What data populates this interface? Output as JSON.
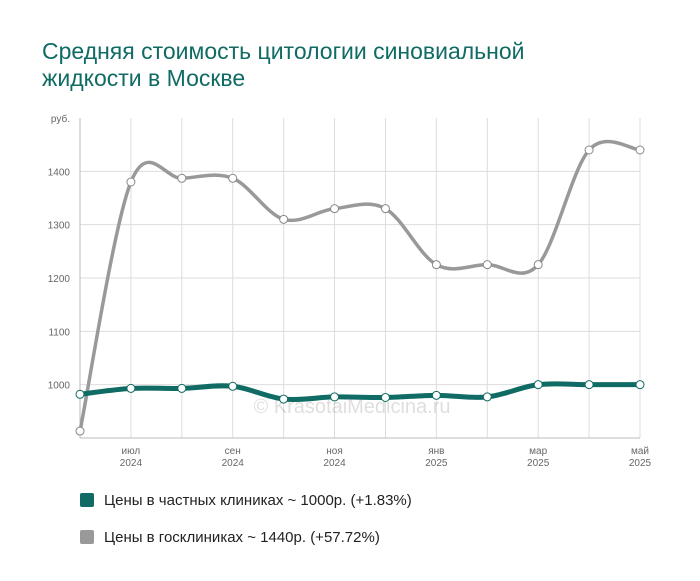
{
  "title_lines": [
    "Средняя стоимость цитологии синовиальной",
    "жидкости в Москве"
  ],
  "watermark": "© KrasotaiMedicina.ru",
  "colors": {
    "private": "#0f6b63",
    "public": "#999999",
    "title": "#0f6b63"
  },
  "chart_data": {
    "type": "line",
    "title": "Средняя стоимость цитологии синовиальной жидкости в Москве",
    "ylabel": "руб.",
    "ylim": [
      900,
      1500
    ],
    "yticks": [
      1000,
      1100,
      1200,
      1300,
      1400
    ],
    "grid": true,
    "legend_position": "bottom",
    "x": [
      "2024-06",
      "2024-07",
      "2024-08",
      "2024-09",
      "2024-10",
      "2024-11",
      "2024-12",
      "2025-01",
      "2025-02",
      "2025-03",
      "2025-04",
      "2025-05"
    ],
    "x_tick_labels": [
      {
        "index": 1,
        "month": "июл",
        "year": "2024"
      },
      {
        "index": 3,
        "month": "сен",
        "year": "2024"
      },
      {
        "index": 5,
        "month": "ноя",
        "year": "2024"
      },
      {
        "index": 7,
        "month": "янв",
        "year": "2025"
      },
      {
        "index": 9,
        "month": "мар",
        "year": "2025"
      },
      {
        "index": 11,
        "month": "май",
        "year": "2025"
      }
    ],
    "series": [
      {
        "name": "Цены в частных клиниках ~ 1000р. (+1.83%)",
        "color": "#0f6b63",
        "values": [
          982,
          993,
          993,
          997,
          973,
          977,
          976,
          980,
          977,
          1000,
          1000,
          1000
        ]
      },
      {
        "name": "Цены в госклиниках ~ 1440р. (+57.72%)",
        "color": "#999999",
        "values": [
          913,
          1380,
          1387,
          1387,
          1310,
          1330,
          1330,
          1225,
          1225,
          1225,
          1440,
          1440
        ]
      }
    ]
  }
}
